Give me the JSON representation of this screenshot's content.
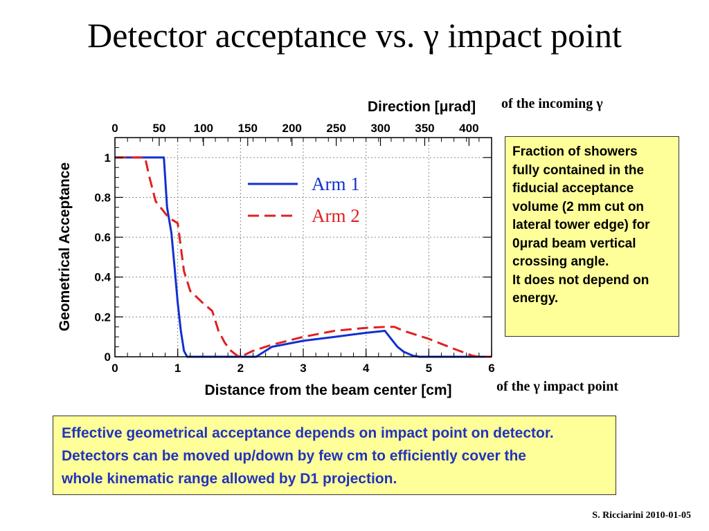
{
  "slide": {
    "title": "Detector acceptance vs. γ impact point",
    "top_axis_note": "of the incoming γ",
    "bottom_axis_note": "of the γ impact point",
    "side_note": [
      "Fraction of showers",
      "fully contained in the",
      "fiducial acceptance",
      "volume (2 mm cut on",
      "lateral tower edge) for",
      "0μrad beam vertical",
      "crossing angle.",
      "It does not depend on",
      "energy."
    ],
    "bottom_note": [
      "Effective geometrical acceptance depends on impact point on detector.",
      "Detectors can be moved up/down by few cm to efficiently cover the",
      "whole kinematic range allowed by D1 projection."
    ],
    "footer": "S. Ricciarini 2010-01-05",
    "colors": {
      "note_box_bg": "#ffff99",
      "bottom_note_text": "#2233bb"
    }
  },
  "chart_data": {
    "type": "line",
    "xlabel": "Distance from the beam center [cm]",
    "ylabel": "Geometrical Acceptance",
    "top_xlabel": "Direction [μrad]",
    "xlim": [
      0,
      6
    ],
    "ylim": [
      0,
      1.1
    ],
    "x_ticks": [
      "0",
      "1",
      "2",
      "3",
      "4",
      "5",
      "6"
    ],
    "y_ticks": [
      "0",
      "0.2",
      "0.4",
      "0.6",
      "0.8",
      "1"
    ],
    "y_tick_values": [
      0,
      0.2,
      0.4,
      0.6,
      0.8,
      1.0
    ],
    "top_ticks": [
      "0",
      "50",
      "100",
      "150",
      "200",
      "250",
      "300",
      "350",
      "400"
    ],
    "top_tick_values": [
      0,
      50,
      100,
      150,
      200,
      250,
      300,
      350,
      400
    ],
    "top_axis_scale_cm_per_unit": 0.0141,
    "grid": true,
    "legend_position": "top-center",
    "series": [
      {
        "name": "Arm 1",
        "color": "#1030d0",
        "style": "solid",
        "points": [
          [
            0,
            1.0
          ],
          [
            0.78,
            1.0
          ],
          [
            0.83,
            0.75
          ],
          [
            0.9,
            0.62
          ],
          [
            0.95,
            0.45
          ],
          [
            1.0,
            0.27
          ],
          [
            1.05,
            0.13
          ],
          [
            1.1,
            0.03
          ],
          [
            1.15,
            0
          ],
          [
            2.25,
            0
          ],
          [
            2.5,
            0.05
          ],
          [
            3.0,
            0.08
          ],
          [
            3.5,
            0.1
          ],
          [
            4.0,
            0.12
          ],
          [
            4.3,
            0.13
          ],
          [
            4.4,
            0.09
          ],
          [
            4.5,
            0.05
          ],
          [
            4.6,
            0.025
          ],
          [
            4.75,
            0.005
          ],
          [
            4.85,
            0
          ],
          [
            6.0,
            0
          ]
        ]
      },
      {
        "name": "Arm 2",
        "color": "#e02020",
        "style": "dashed",
        "points": [
          [
            0,
            1.0
          ],
          [
            0.48,
            1.0
          ],
          [
            0.55,
            0.9
          ],
          [
            0.65,
            0.78
          ],
          [
            0.75,
            0.74
          ],
          [
            0.85,
            0.7
          ],
          [
            1.0,
            0.67
          ],
          [
            1.05,
            0.55
          ],
          [
            1.1,
            0.43
          ],
          [
            1.2,
            0.33
          ],
          [
            1.3,
            0.3
          ],
          [
            1.4,
            0.27
          ],
          [
            1.55,
            0.23
          ],
          [
            1.65,
            0.13
          ],
          [
            1.75,
            0.07
          ],
          [
            1.85,
            0.03
          ],
          [
            1.95,
            0.005
          ],
          [
            2.0,
            0
          ],
          [
            2.2,
            0.03
          ],
          [
            2.5,
            0.06
          ],
          [
            3.0,
            0.1
          ],
          [
            3.5,
            0.13
          ],
          [
            4.0,
            0.145
          ],
          [
            4.3,
            0.15
          ],
          [
            4.45,
            0.15
          ],
          [
            4.6,
            0.13
          ],
          [
            5.0,
            0.09
          ],
          [
            5.4,
            0.04
          ],
          [
            5.7,
            0.005
          ],
          [
            5.8,
            0
          ],
          [
            6.0,
            0
          ]
        ]
      }
    ]
  }
}
